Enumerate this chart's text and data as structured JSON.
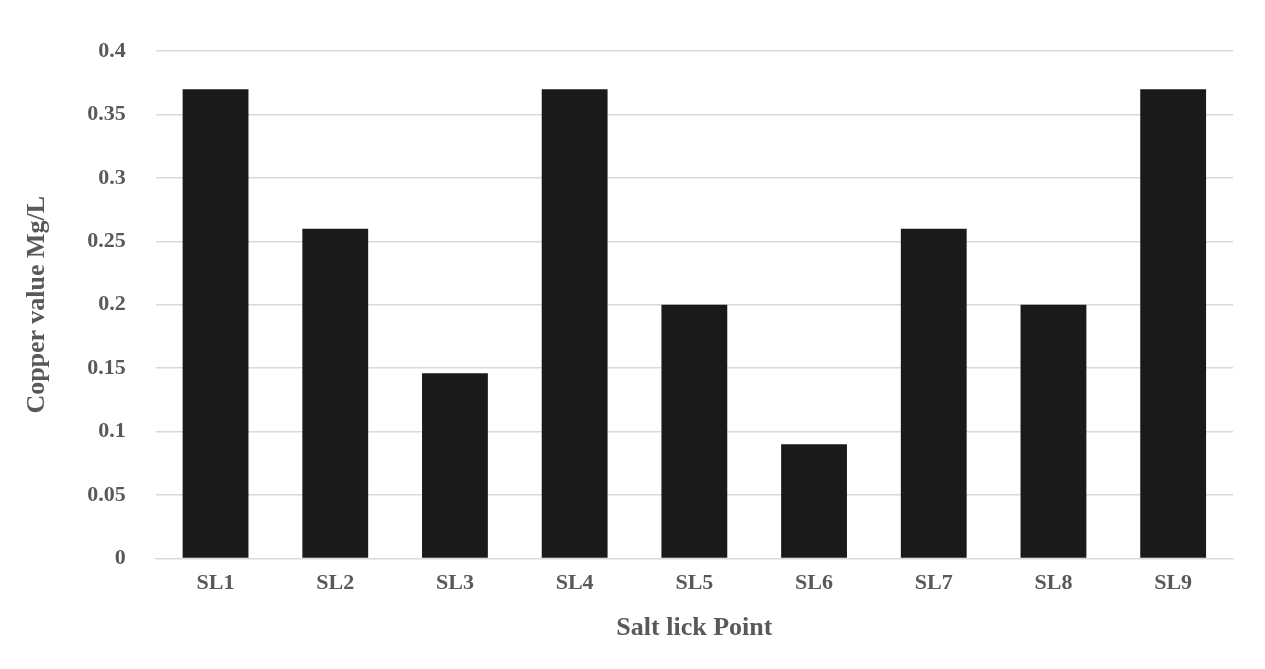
{
  "chart_data": {
    "type": "bar",
    "xlabel": "Salt lick Point",
    "ylabel": "Copper value Mg/L",
    "categories": [
      "SL1",
      "SL2",
      "SL3",
      "SL4",
      "SL5",
      "SL6",
      "SL7",
      "SL8",
      "SL9"
    ],
    "values": [
      0.37,
      0.26,
      0.146,
      0.37,
      0.2,
      0.09,
      0.26,
      0.2,
      0.37
    ],
    "color": "#1a1a1a",
    "ylim": [
      0,
      0.4
    ],
    "yticks": [
      0,
      0.05,
      0.1,
      0.15,
      0.2,
      0.25,
      0.3,
      0.35,
      0.4
    ],
    "grid": "y"
  }
}
